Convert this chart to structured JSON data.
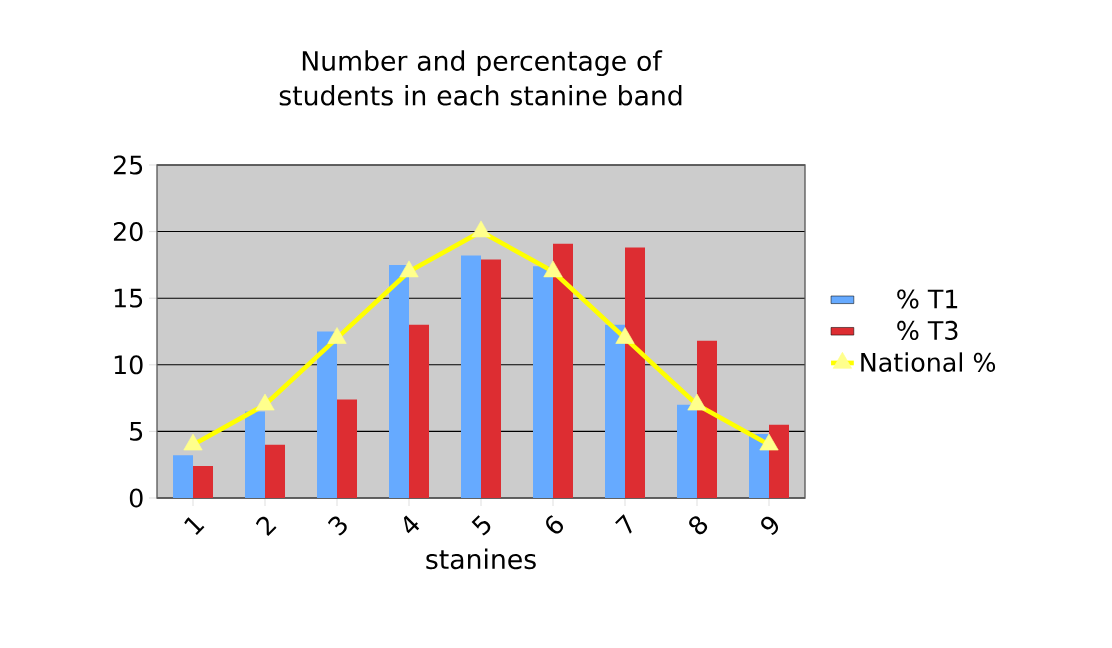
{
  "chart_data": {
    "type": "bar",
    "title": "Number and percentage of students in each stanine band",
    "xlabel": "stanines",
    "categories": [
      "1",
      "2",
      "3",
      "4",
      "5",
      "6",
      "7",
      "8",
      "9"
    ],
    "series": [
      {
        "name": "% T1",
        "color": "#66aaff",
        "values": [
          3.2,
          6.5,
          12.5,
          17.5,
          18.2,
          17.4,
          13.0,
          7.0,
          4.8
        ]
      },
      {
        "name": "% T3",
        "color": "#dd2d32",
        "values": [
          2.4,
          4.0,
          7.4,
          13.0,
          17.9,
          19.1,
          18.8,
          11.8,
          5.5
        ]
      },
      {
        "name": "National %",
        "type": "line",
        "color": "#ffff00",
        "marker": "triangle",
        "values": [
          4,
          7,
          12,
          17,
          20,
          17,
          12,
          7,
          4
        ]
      }
    ],
    "ylim": [
      0,
      25
    ],
    "yticks": [
      0,
      5,
      10,
      15,
      20,
      25
    ],
    "grid": "y",
    "legend": "right"
  }
}
